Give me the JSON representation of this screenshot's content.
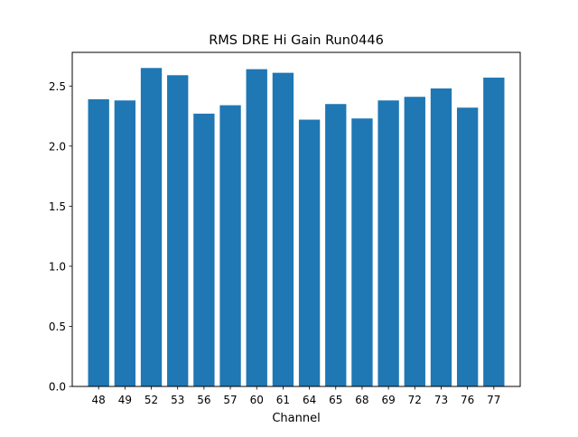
{
  "chart_data": {
    "type": "bar",
    "title": "RMS DRE Hi Gain Run0446",
    "xlabel": "Channel",
    "ylabel": "",
    "categories": [
      "48",
      "49",
      "52",
      "53",
      "56",
      "57",
      "60",
      "61",
      "64",
      "65",
      "68",
      "69",
      "72",
      "73",
      "76",
      "77"
    ],
    "values": [
      2.39,
      2.38,
      2.65,
      2.59,
      2.27,
      2.34,
      2.64,
      2.61,
      2.22,
      2.35,
      2.23,
      2.38,
      2.41,
      2.48,
      2.32,
      2.57
    ],
    "ylim": [
      0,
      2.78
    ],
    "yticks": [
      "0.0",
      "0.5",
      "1.0",
      "1.5",
      "2.0",
      "2.5"
    ],
    "grid": false,
    "bar_color": "#1f77b4"
  }
}
